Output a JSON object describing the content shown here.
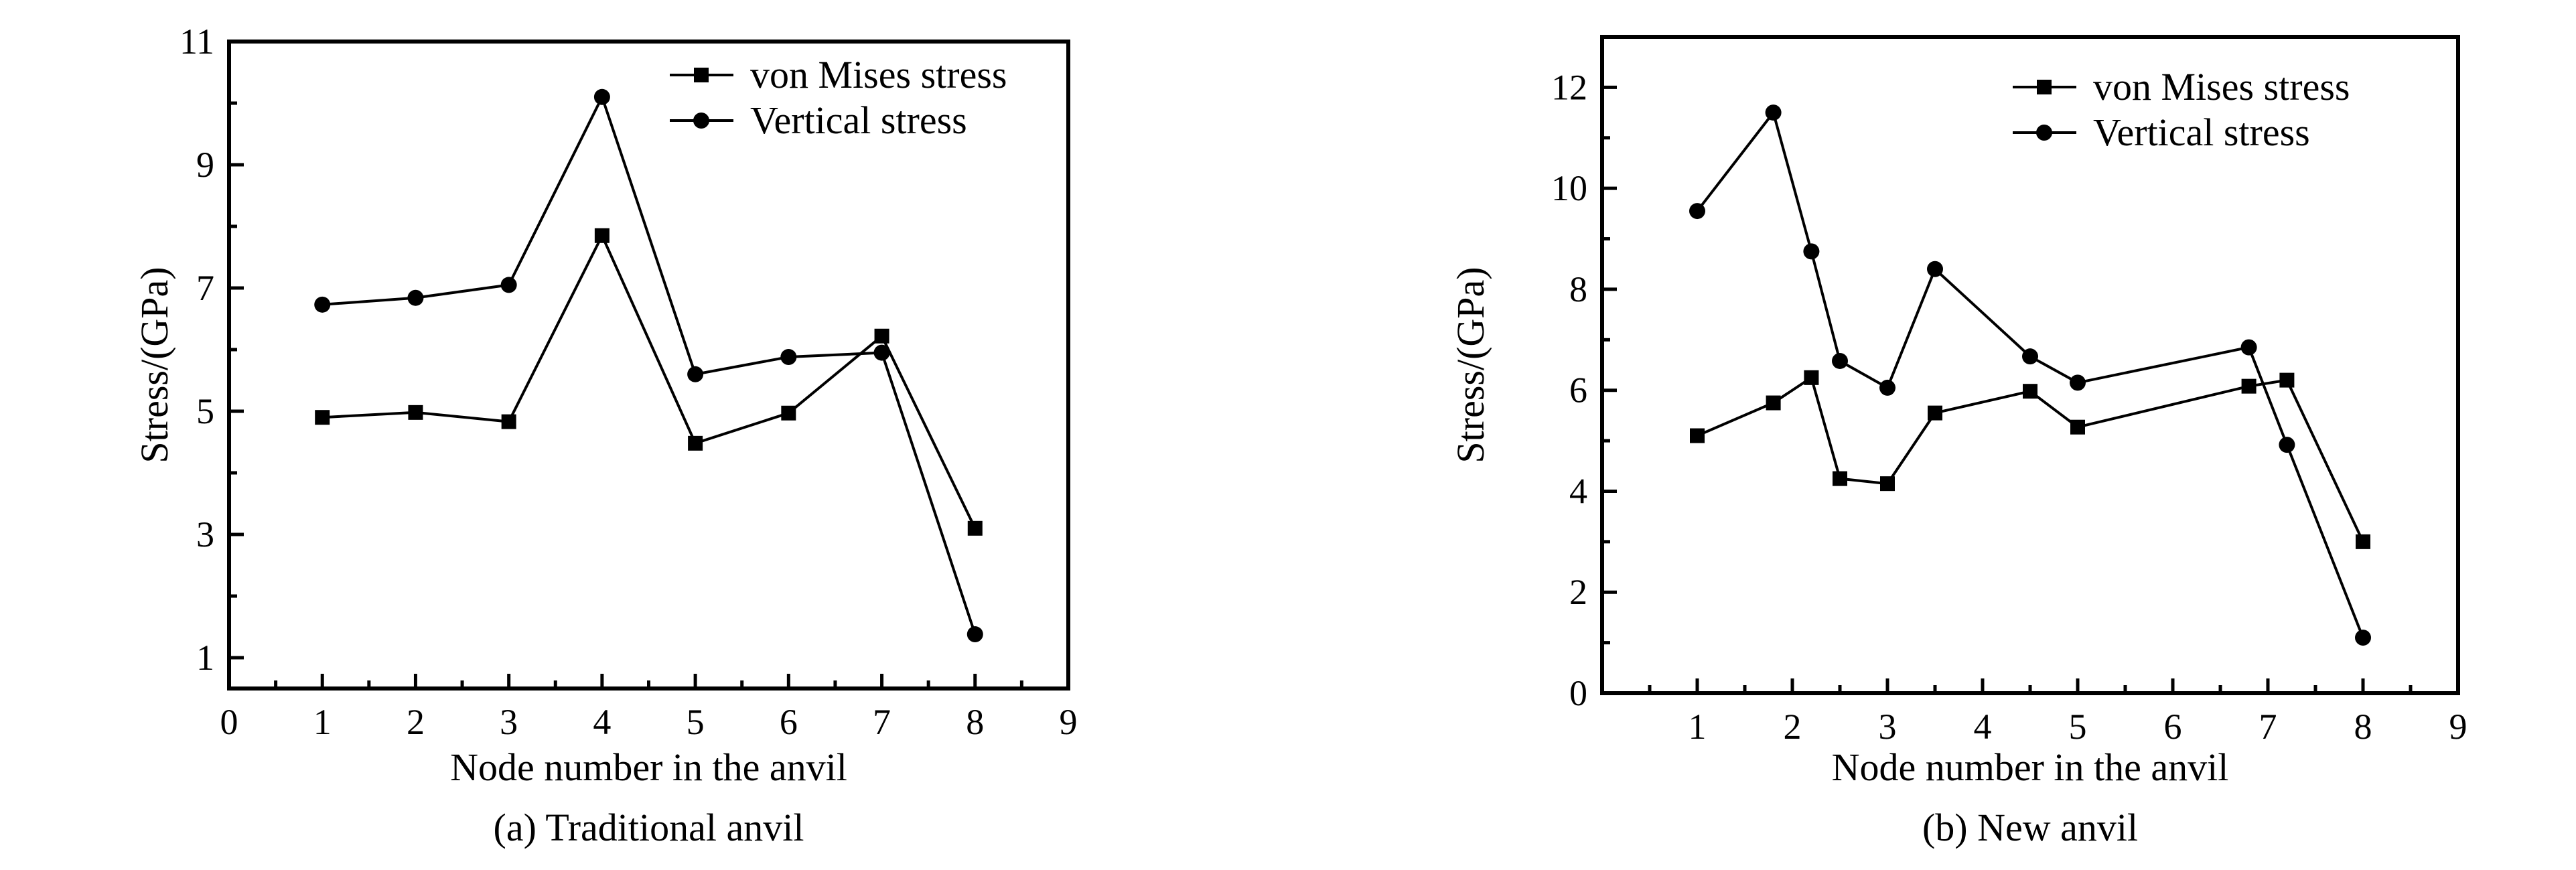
{
  "figure": {
    "panels": [
      "a",
      "b"
    ]
  },
  "chart_data": [
    {
      "type": "line",
      "caption": "(a) Traditional anvil",
      "xlabel": "Node number in the anvil",
      "ylabel": "Stress/(GPa)",
      "xlim": [
        0,
        9
      ],
      "ylim": [
        0.5,
        11
      ],
      "xticks": [
        0,
        1,
        2,
        3,
        4,
        5,
        6,
        7,
        8,
        9
      ],
      "yticks": [
        1,
        3,
        5,
        7,
        9,
        11
      ],
      "grid": false,
      "legend_position": "top-right",
      "series": [
        {
          "name": "von Mises stress",
          "marker": "square",
          "x": [
            1,
            2,
            3,
            4,
            5,
            6,
            7,
            8
          ],
          "y": [
            4.9,
            4.98,
            4.83,
            7.85,
            4.48,
            4.97,
            6.22,
            3.1
          ]
        },
        {
          "name": "Vertical stress",
          "marker": "circle",
          "x": [
            1,
            2,
            3,
            4,
            5,
            6,
            7,
            8
          ],
          "y": [
            6.73,
            6.84,
            7.05,
            10.1,
            5.6,
            5.88,
            5.95,
            1.38
          ]
        }
      ]
    },
    {
      "type": "line",
      "caption": "(b) New anvil",
      "xlabel": "Node number in the anvil",
      "ylabel": "Stress/(GPa)",
      "xlim": [
        0,
        9
      ],
      "ylim": [
        0,
        13
      ],
      "xticks": [
        1,
        2,
        3,
        4,
        5,
        6,
        7,
        8,
        9
      ],
      "yticks": [
        0,
        2,
        4,
        6,
        8,
        10,
        12
      ],
      "grid": false,
      "legend_position": "top-right",
      "series": [
        {
          "name": "von Mises stress",
          "marker": "square",
          "x": [
            1,
            1.8,
            2.2,
            2.5,
            3,
            3.5,
            4.5,
            5,
            6.8,
            7.2,
            8
          ],
          "y": [
            5.1,
            5.75,
            6.25,
            4.25,
            4.15,
            5.55,
            5.98,
            5.27,
            6.08,
            6.2,
            3.0
          ]
        },
        {
          "name": "Vertical stress",
          "marker": "circle",
          "x": [
            1,
            1.8,
            2.2,
            2.5,
            3,
            3.5,
            4.5,
            5,
            6.8,
            7.2,
            8
          ],
          "y": [
            9.55,
            11.5,
            8.75,
            6.58,
            6.05,
            8.4,
            6.67,
            6.15,
            6.85,
            4.92,
            1.1
          ]
        }
      ]
    }
  ]
}
